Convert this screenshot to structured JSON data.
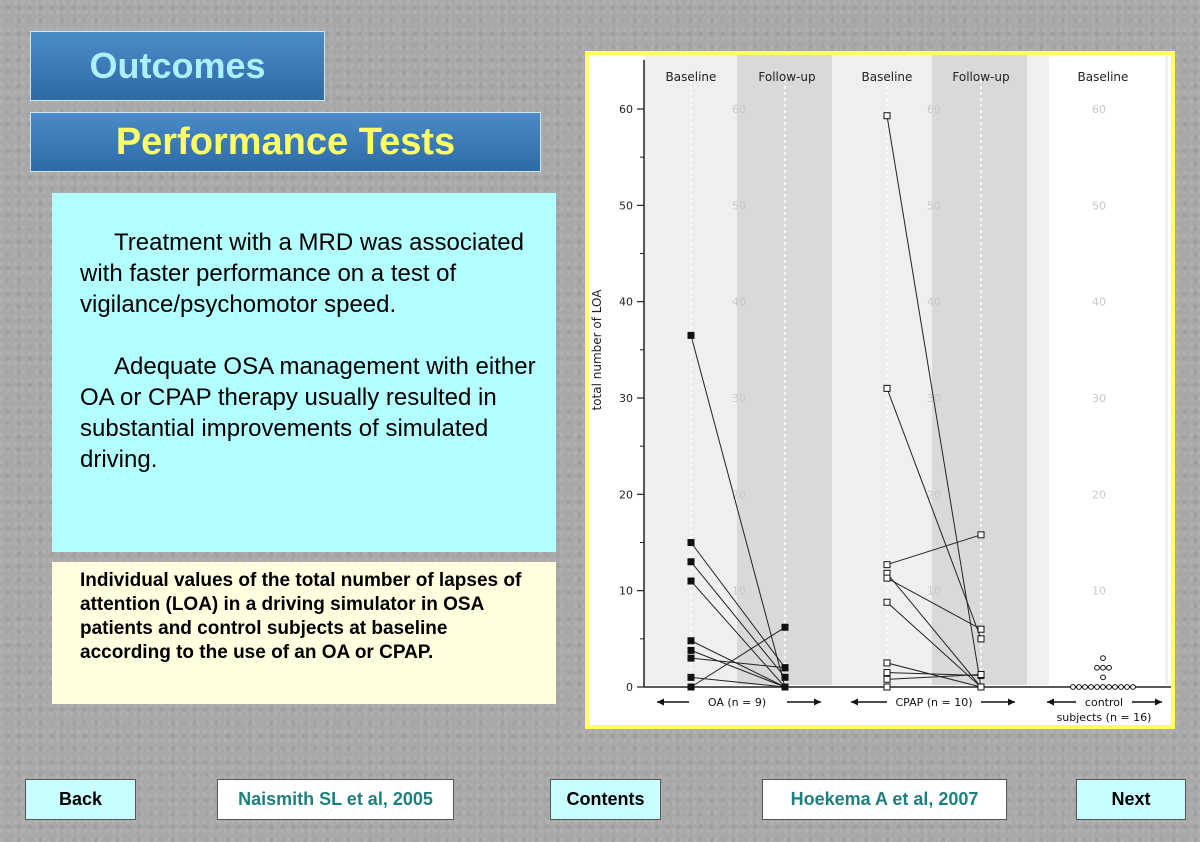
{
  "header": {
    "title": "Outcomes",
    "subtitle": "Performance Tests"
  },
  "body_text": {
    "p1": "Treatment with a MRD was associated with faster performance on a test of vigilance/psychomotor speed.",
    "p2": "Adequate OSA management with either OA or CPAP therapy usually resulted in substantial improvements of simulated driving."
  },
  "caption": "Individual values of the total number of lapses of attention (LOA) in a driving simulator in OSA patients and control subjects at baseline according to the use of an OA or CPAP.",
  "nav": {
    "back": "Back",
    "ref1": "Naismith SL et al, 2005",
    "contents": "Contents",
    "ref2": "Hoekema A et al, 2007",
    "next": "Next"
  },
  "chart_data": {
    "type": "scatter",
    "ylabel": "total number of LOA",
    "ylim": [
      0,
      60
    ],
    "yticks": [
      0,
      10,
      20,
      30,
      40,
      50,
      60
    ],
    "column_labels": [
      "Baseline",
      "Follow-up",
      "Baseline",
      "Follow-up",
      "Baseline"
    ],
    "group_labels": [
      "OA (n = 9)",
      "CPAP (n = 10)",
      "control",
      "subjects (n = 16)"
    ],
    "series": [
      {
        "name": "OA (n = 9)",
        "marker": "filled-square",
        "pairs": [
          [
            36.5,
            0
          ],
          [
            15,
            2
          ],
          [
            13,
            1
          ],
          [
            11,
            0
          ],
          [
            4.8,
            0
          ],
          [
            3.8,
            0
          ],
          [
            3,
            2
          ],
          [
            1,
            0
          ],
          [
            0,
            6.2
          ]
        ]
      },
      {
        "name": "CPAP (n = 10)",
        "marker": "open-square",
        "pairs": [
          [
            59.3,
            0
          ],
          [
            31,
            5
          ],
          [
            12.7,
            15.8
          ],
          [
            11.8,
            0
          ],
          [
            11.3,
            6
          ],
          [
            8.8,
            0
          ],
          [
            2.5,
            0
          ],
          [
            1.5,
            1.2
          ],
          [
            0.8,
            1.3
          ],
          [
            0,
            0
          ]
        ]
      },
      {
        "name": "control subjects (n = 16)",
        "marker": "open-circle",
        "values": [
          3,
          2,
          2,
          2,
          1,
          0,
          0,
          0,
          0,
          0,
          0,
          0,
          0,
          0,
          0,
          0
        ]
      }
    ],
    "colors": {
      "frame": "#ffff66",
      "panel": "#efefef",
      "followup_band": "#d9d9d9",
      "axis": "#222222"
    }
  }
}
